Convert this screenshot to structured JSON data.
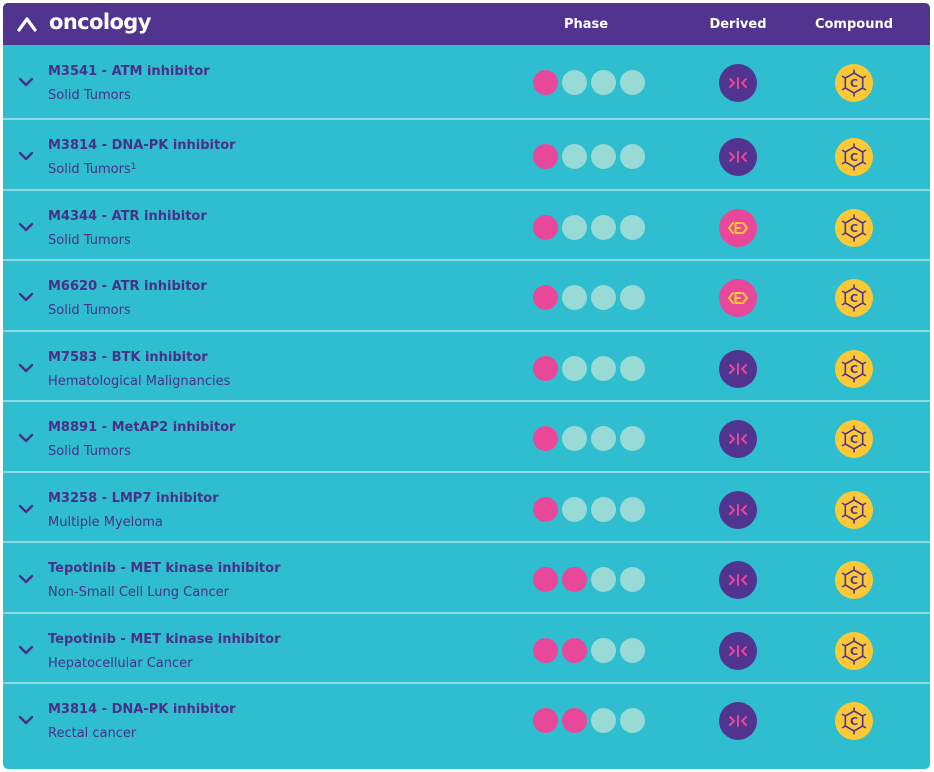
{
  "header": {
    "brand": "oncology",
    "col_phase": "Phase",
    "col_derived": "Derived",
    "col_compound": "Compound"
  },
  "colors": {
    "header_bg": "#503490",
    "row_bg": "#2ebecf",
    "phase_active": "#e8479a",
    "phase_inactive": "#98dad6",
    "derived_new": "#503490",
    "derived_external": "#e8479a",
    "compound": "#fdc835"
  },
  "icons": {
    "collapse": "chevron-up-icon",
    "expand": "chevron-down-icon",
    "derived_new": "arrows-inward-icon",
    "derived_external": "e-bracket-icon",
    "compound": "molecule-c-icon"
  },
  "rows": [
    {
      "title": "M3541 - ATM inhibitor",
      "subtitle": "Solid Tumors",
      "sup": "",
      "phase": 1,
      "derived": "new"
    },
    {
      "title": "M3814 - DNA-PK inhibitor",
      "subtitle": "Solid Tumors",
      "sup": "1",
      "phase": 1,
      "derived": "new"
    },
    {
      "title": "M4344 - ATR inhibitor",
      "subtitle": "Solid Tumors",
      "sup": "",
      "phase": 1,
      "derived": "external"
    },
    {
      "title": "M6620 - ATR inhibitor",
      "subtitle": "Solid Tumors",
      "sup": "",
      "phase": 1,
      "derived": "external"
    },
    {
      "title": "M7583 - BTK inhibitor",
      "subtitle": "Hematological Malignancies",
      "sup": "",
      "phase": 1,
      "derived": "new"
    },
    {
      "title": "M8891 - MetAP2 inhibitor",
      "subtitle": "Solid Tumors",
      "sup": "",
      "phase": 1,
      "derived": "new"
    },
    {
      "title": "M3258 - LMP7 inhibitor",
      "subtitle": "Multiple Myeloma",
      "sup": "",
      "phase": 1,
      "derived": "new"
    },
    {
      "title": "Tepotinib - MET kinase inhibitor",
      "subtitle": "Non-Small Cell Lung Cancer",
      "sup": "",
      "phase": 2,
      "derived": "new"
    },
    {
      "title": "Tepotinib - MET kinase inhibitor",
      "subtitle": "Hepatocellular Cancer",
      "sup": "",
      "phase": 2,
      "derived": "new"
    },
    {
      "title": "M3814 - DNA-PK inhibitor",
      "subtitle": "Rectal cancer",
      "sup": "",
      "phase": 2,
      "derived": "new"
    }
  ],
  "phase_total": 4
}
